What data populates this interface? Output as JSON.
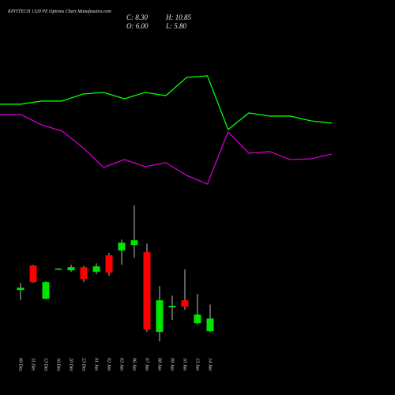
{
  "chart_data": [
    {
      "type": "candlestick",
      "title": "KPITTECH 1320 PE Options Chart Munafasutra.com",
      "close_label": "C: 8.30",
      "high_label": "H: 10.85",
      "open_label": "O: 6.00",
      "low_label": "L: 5.80",
      "categories": [
        "09 Dec",
        "11 Dec",
        "13 Dec",
        "16 Dec",
        "20 Dec",
        "23 Dec",
        "01 Jan",
        "02 Jan",
        "03 Jan",
        "06 Jan",
        "07 Jan",
        "08 Jan",
        "09 Jan",
        "10 Jan",
        "13 Jan",
        "14 Jan"
      ],
      "open": [
        13.49,
        17.95,
        11.9,
        17.3,
        17.09,
        17.66,
        16.8,
        19.82,
        20.69,
        21.7,
        20.4,
        5.86,
        10.32,
        11.62,
        7.44,
        6.0
      ],
      "high": [
        14.78,
        18.1,
        15.1,
        17.5,
        18.1,
        17.9,
        18.38,
        20.26,
        22.7,
        28.9,
        21.98,
        14.21,
        12.48,
        17.23,
        12.77,
        10.85
      ],
      "low": [
        11.62,
        14.8,
        11.8,
        17.2,
        16.8,
        14.93,
        16.37,
        16.08,
        18.1,
        19.39,
        5.86,
        4.13,
        8.02,
        9.89,
        7.3,
        5.8
      ],
      "close": [
        13.92,
        14.93,
        14.93,
        17.4,
        17.66,
        15.5,
        17.81,
        16.66,
        22.13,
        22.56,
        6.29,
        11.62,
        10.61,
        10.46,
        9.02,
        8.3
      ],
      "up_color": "#00e600",
      "down_color": "#ff0000",
      "wick_color": "#bbbbbb",
      "ylim": [
        3,
        30
      ]
    },
    {
      "type": "line",
      "series": [
        {
          "color": "#00ff00",
          "values": [
            73.8,
            73.8,
            76.3,
            76.3,
            81.9,
            83.1,
            78.1,
            83.1,
            80.6,
            95,
            96.3,
            53.8,
            66.9,
            64.4,
            64.4,
            60.6,
            58.8
          ]
        },
        {
          "color": "#cc00cc",
          "values": [
            65.6,
            65.6,
            57.5,
            52.5,
            39.4,
            23.8,
            30,
            24.4,
            27.5,
            17.5,
            10.6,
            51.9,
            35,
            36.3,
            30,
            30.6,
            34.4
          ]
        }
      ],
      "ylim": [
        0,
        100
      ]
    }
  ]
}
